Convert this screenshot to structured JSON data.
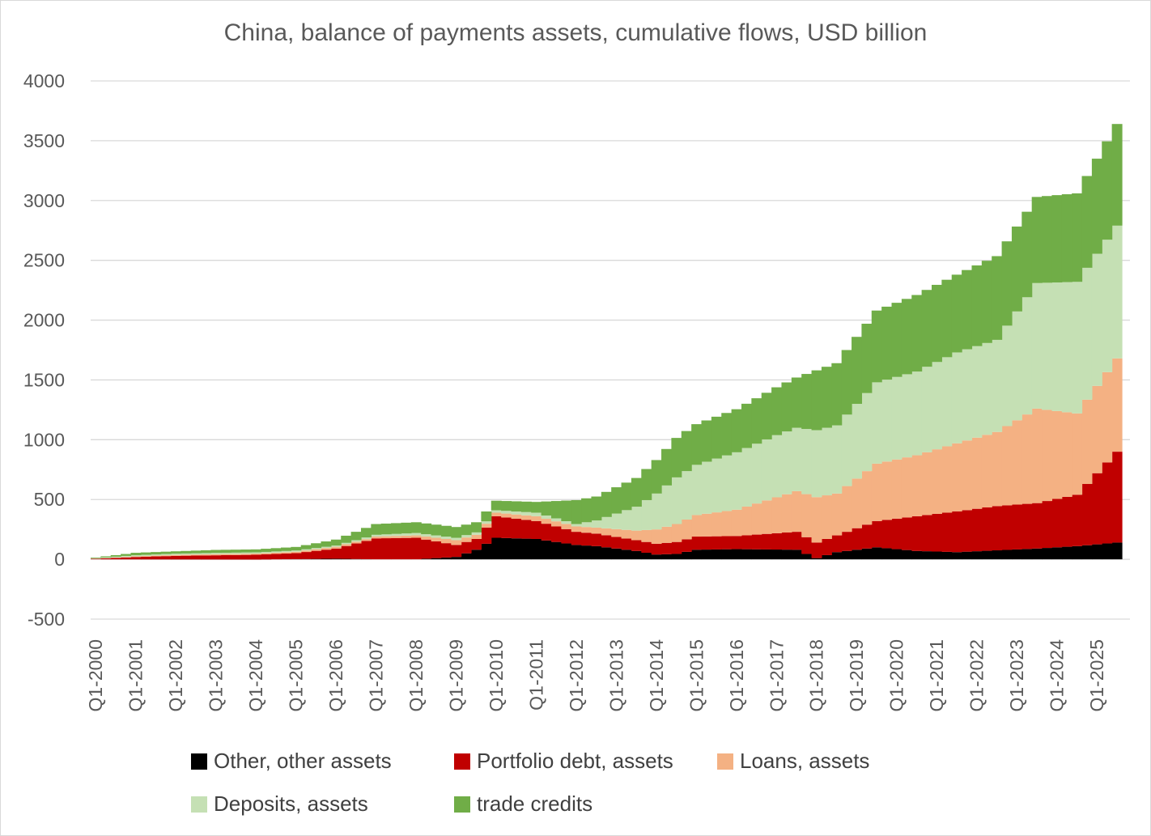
{
  "chart_data": {
    "type": "area",
    "title": "China, balance of payments assets, cumulative flows, USD billion",
    "ylim": [
      -500,
      4000
    ],
    "yticks": [
      -500,
      0,
      500,
      1000,
      1500,
      2000,
      2500,
      3000,
      3500,
      4000
    ],
    "x_tick_labels": [
      "Q1-2000",
      "Q1-2001",
      "Q1-2002",
      "Q1-2003",
      "Q1-2004",
      "Q1-2005",
      "Q1-2006",
      "Q1-2007",
      "Q1-2008",
      "Q1-2009",
      "Q1-2010",
      "Q1-2011",
      "Q1-2012",
      "Q1-2013",
      "Q1-2014",
      "Q1-2015",
      "Q1-2016",
      "Q1-2017",
      "Q1-2018",
      "Q1-2019",
      "Q1-2020",
      "Q1-2021",
      "Q1-2022",
      "Q1-2023",
      "Q1-2024",
      "Q1-2025"
    ],
    "stacked": true,
    "quarters_per_year": 4,
    "num_quarters": 103,
    "grid": true,
    "legend_position": "bottom",
    "series": [
      {
        "name": "Other, other assets",
        "color": "#000000",
        "knots": [
          [
            0,
            0
          ],
          [
            16,
            -2
          ],
          [
            24,
            5
          ],
          [
            28,
            0
          ],
          [
            32,
            0
          ],
          [
            36,
            20
          ],
          [
            38,
            80
          ],
          [
            40,
            180
          ],
          [
            44,
            170
          ],
          [
            48,
            120
          ],
          [
            50,
            110
          ],
          [
            54,
            70
          ],
          [
            56,
            40
          ],
          [
            58,
            45
          ],
          [
            60,
            80
          ],
          [
            64,
            85
          ],
          [
            70,
            80
          ],
          [
            72,
            10
          ],
          [
            74,
            60
          ],
          [
            78,
            100
          ],
          [
            82,
            70
          ],
          [
            86,
            60
          ],
          [
            90,
            75
          ],
          [
            94,
            90
          ],
          [
            98,
            110
          ],
          [
            102,
            140
          ]
        ]
      },
      {
        "name": "Portfolio debt, assets",
        "color": "#c00000",
        "knots": [
          [
            0,
            5
          ],
          [
            4,
            20
          ],
          [
            8,
            30
          ],
          [
            12,
            35
          ],
          [
            16,
            40
          ],
          [
            20,
            50
          ],
          [
            24,
            85
          ],
          [
            28,
            175
          ],
          [
            32,
            180
          ],
          [
            36,
            100
          ],
          [
            38,
            90
          ],
          [
            40,
            180
          ],
          [
            44,
            150
          ],
          [
            48,
            110
          ],
          [
            50,
            105
          ],
          [
            54,
            90
          ],
          [
            56,
            90
          ],
          [
            58,
            100
          ],
          [
            60,
            110
          ],
          [
            64,
            110
          ],
          [
            70,
            150
          ],
          [
            72,
            130
          ],
          [
            74,
            140
          ],
          [
            78,
            220
          ],
          [
            82,
            290
          ],
          [
            86,
            340
          ],
          [
            90,
            370
          ],
          [
            94,
            380
          ],
          [
            98,
            430
          ],
          [
            102,
            760
          ]
        ]
      },
      {
        "name": "Loans, assets",
        "color": "#f4b183",
        "knots": [
          [
            0,
            0
          ],
          [
            4,
            5
          ],
          [
            8,
            8
          ],
          [
            12,
            10
          ],
          [
            16,
            10
          ],
          [
            20,
            12
          ],
          [
            24,
            15
          ],
          [
            28,
            15
          ],
          [
            32,
            20
          ],
          [
            36,
            40
          ],
          [
            40,
            30
          ],
          [
            44,
            40
          ],
          [
            48,
            45
          ],
          [
            50,
            50
          ],
          [
            54,
            80
          ],
          [
            56,
            120
          ],
          [
            58,
            150
          ],
          [
            60,
            180
          ],
          [
            64,
            220
          ],
          [
            68,
            300
          ],
          [
            70,
            340
          ],
          [
            72,
            380
          ],
          [
            74,
            350
          ],
          [
            78,
            480
          ],
          [
            82,
            510
          ],
          [
            86,
            570
          ],
          [
            90,
            620
          ],
          [
            94,
            790
          ],
          [
            98,
            680
          ],
          [
            102,
            780
          ]
        ]
      },
      {
        "name": "Deposits, assets",
        "color": "#c5e0b4",
        "knots": [
          [
            0,
            5
          ],
          [
            4,
            10
          ],
          [
            8,
            10
          ],
          [
            12,
            10
          ],
          [
            16,
            10
          ],
          [
            20,
            10
          ],
          [
            24,
            10
          ],
          [
            28,
            15
          ],
          [
            32,
            20
          ],
          [
            36,
            20
          ],
          [
            40,
            20
          ],
          [
            44,
            30
          ],
          [
            48,
            20
          ],
          [
            50,
            60
          ],
          [
            54,
            200
          ],
          [
            56,
            300
          ],
          [
            58,
            390
          ],
          [
            60,
            420
          ],
          [
            64,
            480
          ],
          [
            68,
            520
          ],
          [
            70,
            530
          ],
          [
            72,
            560
          ],
          [
            74,
            570
          ],
          [
            78,
            680
          ],
          [
            82,
            700
          ],
          [
            86,
            760
          ],
          [
            90,
            770
          ],
          [
            94,
            1050
          ],
          [
            98,
            1100
          ],
          [
            102,
            1110
          ]
        ]
      },
      {
        "name": "trade credits",
        "color": "#70ad47",
        "knots": [
          [
            0,
            5
          ],
          [
            4,
            20
          ],
          [
            8,
            20
          ],
          [
            12,
            25
          ],
          [
            16,
            25
          ],
          [
            20,
            30
          ],
          [
            24,
            50
          ],
          [
            28,
            90
          ],
          [
            32,
            90
          ],
          [
            36,
            90
          ],
          [
            40,
            80
          ],
          [
            44,
            90
          ],
          [
            48,
            200
          ],
          [
            50,
            200
          ],
          [
            54,
            240
          ],
          [
            56,
            280
          ],
          [
            58,
            330
          ],
          [
            60,
            340
          ],
          [
            64,
            360
          ],
          [
            68,
            400
          ],
          [
            70,
            420
          ],
          [
            72,
            500
          ],
          [
            74,
            520
          ],
          [
            78,
            600
          ],
          [
            82,
            640
          ],
          [
            86,
            650
          ],
          [
            90,
            700
          ],
          [
            94,
            720
          ],
          [
            98,
            740
          ],
          [
            102,
            850
          ]
        ]
      }
    ]
  }
}
